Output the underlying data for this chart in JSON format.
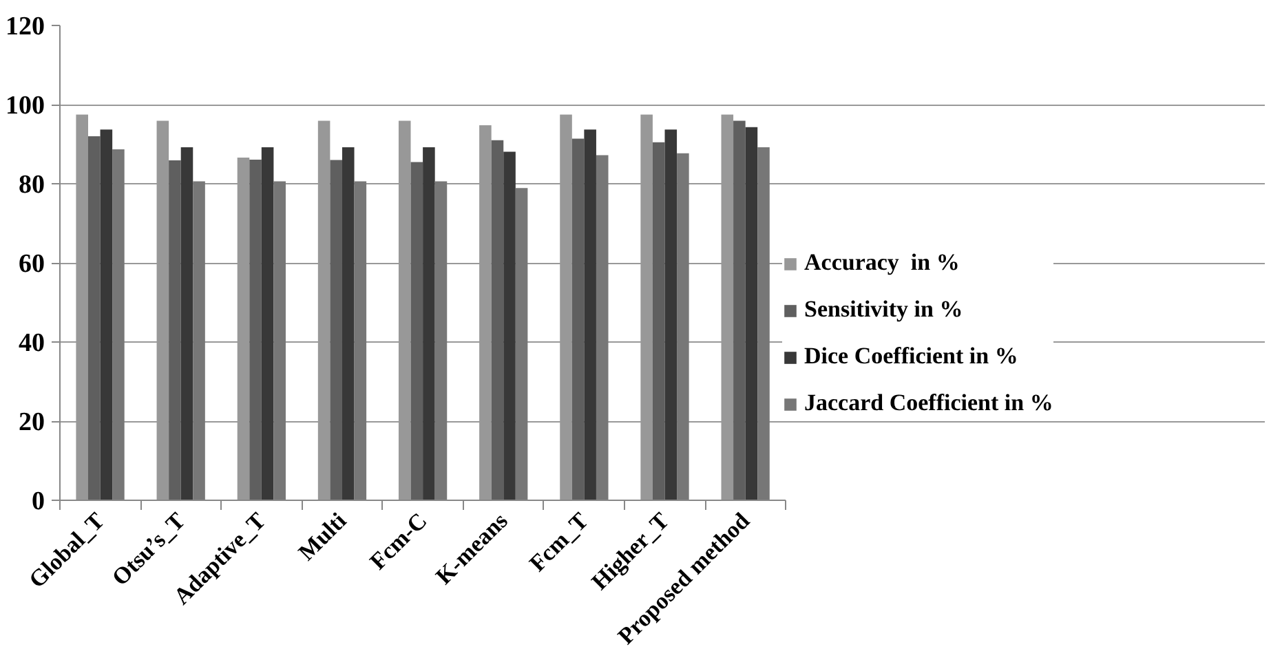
{
  "chart_data": {
    "type": "bar",
    "categories": [
      "Global_T",
      "Otsu’s_T",
      "Adaptive_T",
      "Multi",
      "Fcm-C",
      "K-means",
      "Fcm_T",
      "Higher_T",
      "Proposed method"
    ],
    "series": [
      {
        "color": "#4a4a4a",
        "values": [
          null,
          null,
          null,
          null,
          null,
          null,
          null,
          null,
          null
        ]
      },
      {
        "name": "Accuracy  in %",
        "color": "#989898",
        "values": [
          97.5,
          95.9,
          86.6,
          95.9,
          95.9,
          94.8,
          97.5,
          97.5,
          97.5
        ]
      },
      {
        "name": "Sensitivity in %",
        "color": "#5f5f5f",
        "values": [
          92,
          85.9,
          86.1,
          86,
          85.5,
          91,
          91.4,
          90.5,
          95.9
        ]
      },
      {
        "name": "Dice Coefficient in %",
        "color": "#383838",
        "values": [
          93.7,
          89.2,
          89.2,
          89.2,
          89.2,
          88.1,
          93.7,
          93.7,
          94.3
        ]
      },
      {
        "name": "Jaccard Coefficient in %",
        "color": "#777777",
        "values": [
          88.7,
          80.6,
          80.6,
          80.6,
          80.6,
          78.9,
          87.2,
          87.7,
          89.2
        ]
      }
    ],
    "ylim": [
      0,
      120
    ],
    "yticks": [
      0,
      20,
      40,
      60,
      80,
      100,
      120
    ],
    "grid": "y",
    "legend": "right"
  }
}
